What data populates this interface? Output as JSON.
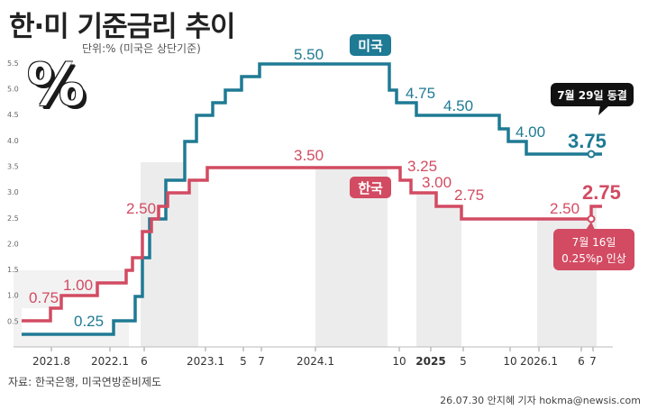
{
  "header": {
    "title": "한·미 기준금리 추이",
    "unit": "단위:% (미국은 상단기준)",
    "source": "자료: 한국은행, 미국연방준비제도",
    "credit": "26.07.30 안지혜 기자 hokma@newsis.com",
    "percent_symbol": "%"
  },
  "chart_data": {
    "type": "line",
    "step": true,
    "ylim": [
      0,
      5.5
    ],
    "yticks": [
      "0.5",
      "1.0",
      "1.5",
      "2.0",
      "2.5",
      "3.0",
      "3.5",
      "4.0",
      "4.5",
      "5.0",
      "5.5"
    ],
    "xticks": [
      "2021.8",
      "2022.1",
      "6",
      "2023.1",
      "5",
      "7",
      "2024.1",
      "10",
      "2025",
      "5",
      "10",
      "2026.1",
      "6",
      "7"
    ],
    "series": [
      {
        "name": "미국",
        "color": "#1f7a94",
        "steps": [
          0.25,
          0.5,
          1.0,
          1.75,
          2.5,
          3.25,
          4.0,
          4.5,
          4.75,
          5.0,
          5.25,
          5.5,
          5.0,
          4.75,
          4.5,
          4.25,
          4.0,
          3.75,
          3.75
        ],
        "labels": [
          "0.25",
          "5.50",
          "4.75",
          "4.50",
          "4.00",
          "3.75"
        ]
      },
      {
        "name": "한국",
        "color": "#d24b62",
        "steps": [
          0.5,
          0.75,
          1.0,
          1.25,
          1.5,
          1.75,
          2.25,
          2.5,
          3.0,
          3.25,
          3.5,
          3.25,
          3.0,
          2.75,
          2.5,
          2.75
        ],
        "labels": [
          "0.75",
          "1.00",
          "2.50",
          "3.50",
          "3.25",
          "3.00",
          "2.75",
          "2.50",
          "2.75"
        ]
      }
    ],
    "annotations": [
      "7월 29일 동결",
      "7월 16일",
      "0.25%p 인상"
    ]
  }
}
